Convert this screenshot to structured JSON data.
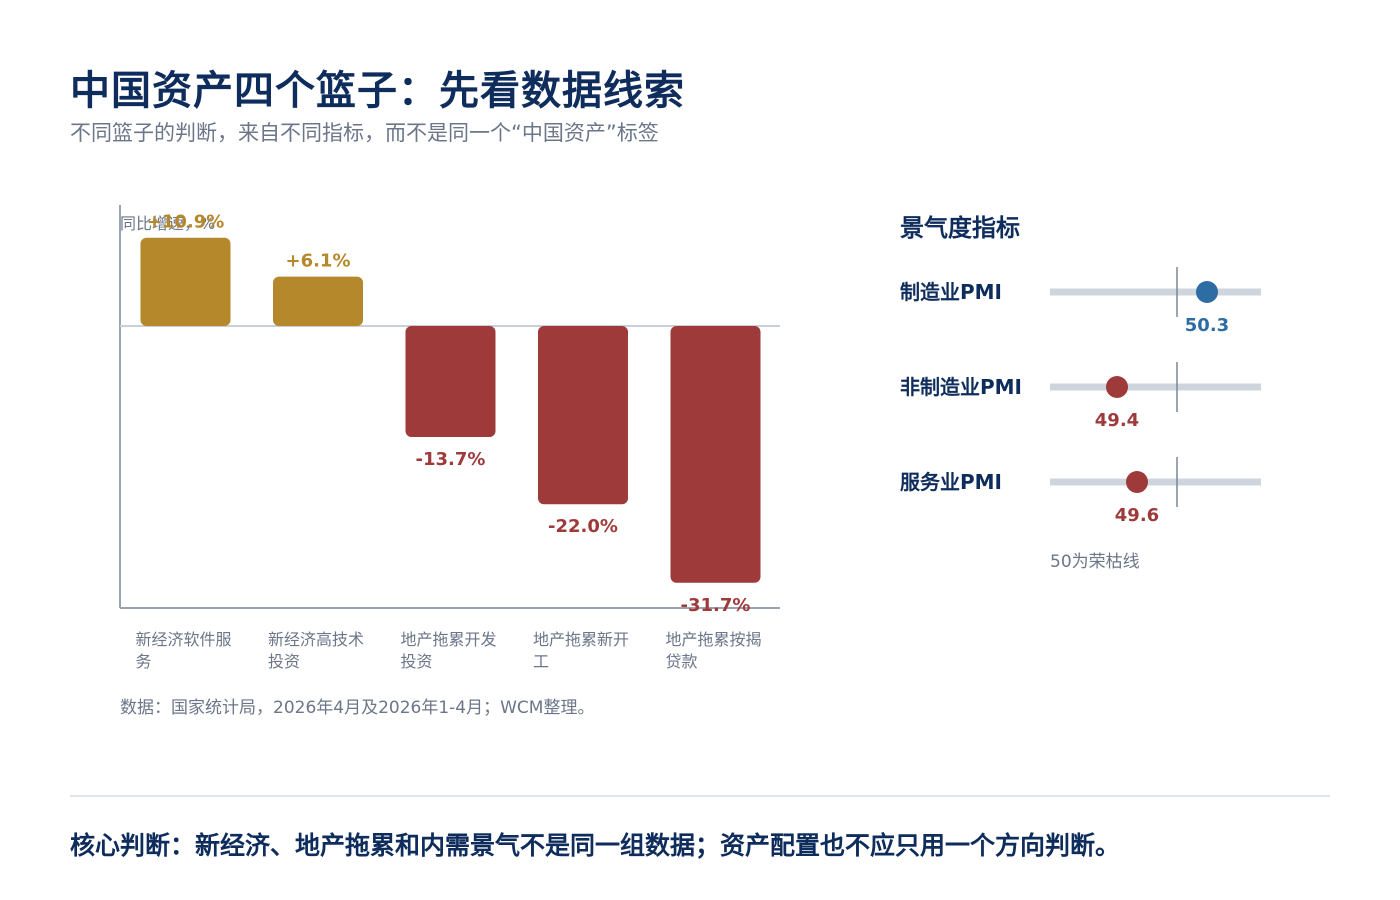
{
  "title": "中国资产四个篮子：先看数据线索",
  "subtitle": "不同篮子的判断，来自不同指标，而不是同一个“中国资产”标签",
  "chart_data": [
    {
      "type": "bar",
      "ylabel": "同比增速，%",
      "categories": [
        "新经济软件服务",
        "新经济高技术投资",
        "地产拖累开发投资",
        "地产拖累新开工",
        "地产拖累按揭贷款"
      ],
      "values": [
        10.9,
        6.1,
        -13.7,
        -22.0,
        -31.7
      ],
      "data_labels": [
        "+10.9%",
        "+6.1%",
        "-13.7%",
        "-22.0%",
        "-31.7%"
      ],
      "ylim": [
        -35.0,
        14.0
      ],
      "colors": {
        "positive": "#b5892b",
        "negative": "#9e3a3a"
      }
    },
    {
      "type": "scatter",
      "title": "景气度指标",
      "categories": [
        "制造业PMI",
        "非制造业PMI",
        "服务业PMI"
      ],
      "values": [
        50.3,
        49.4,
        49.6
      ],
      "reference_value": 50,
      "note": "50为荣枯线",
      "colors": {
        "above": "#2e6da4",
        "below": "#9e3a3a"
      }
    }
  ],
  "source": "数据：国家统计局，2026年4月及2026年1-4月；WCM整理。",
  "conclusion": "核心判断：新经济、地产拖累和内需景气不是同一组数据；资产配置也不应只用一个方向判断。"
}
